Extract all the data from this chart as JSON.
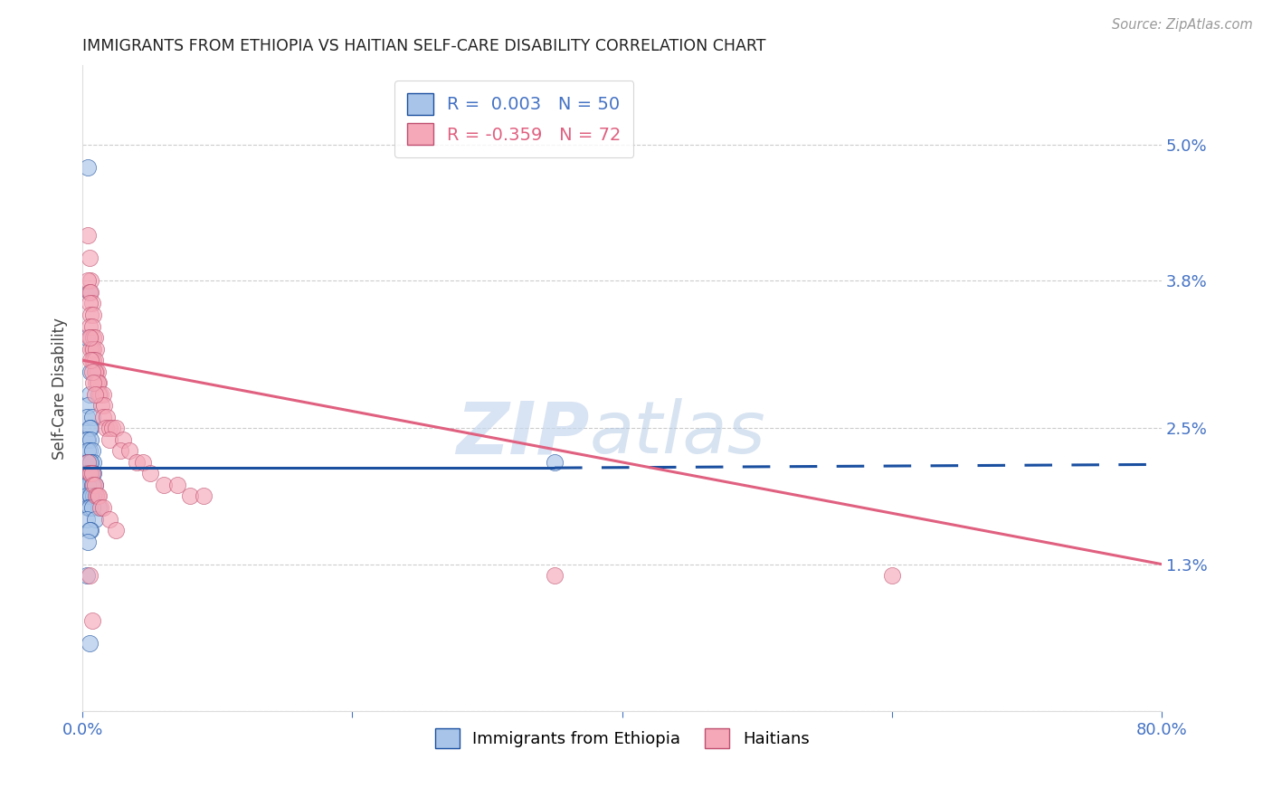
{
  "title": "IMMIGRANTS FROM ETHIOPIA VS HAITIAN SELF-CARE DISABILITY CORRELATION CHART",
  "source": "Source: ZipAtlas.com",
  "ylabel": "Self-Care Disability",
  "yticks": [
    0.0,
    0.013,
    0.025,
    0.038,
    0.05
  ],
  "ytick_labels": [
    "",
    "1.3%",
    "2.5%",
    "3.8%",
    "5.0%"
  ],
  "xlim": [
    0.0,
    0.8
  ],
  "ylim": [
    0.0,
    0.057
  ],
  "color_ethiopia": "#a8c4e8",
  "color_haitian": "#f4a8b8",
  "color_line_ethiopia": "#1a4fa0",
  "color_line_haitian": "#e06080",
  "watermark_zip": "ZIP",
  "watermark_atlas": "atlas",
  "eth_line_x0": 0.0,
  "eth_line_y0": 0.0215,
  "eth_line_x1": 0.35,
  "eth_line_y1": 0.0215,
  "eth_line_dash_x0": 0.35,
  "eth_line_dash_y0": 0.0215,
  "eth_line_dash_x1": 0.8,
  "eth_line_dash_y1": 0.0218,
  "hai_line_x0": 0.0,
  "hai_line_y0": 0.031,
  "hai_line_x1": 0.8,
  "hai_line_y1": 0.013,
  "ethiopia_x": [
    0.004,
    0.005,
    0.003,
    0.006,
    0.005,
    0.004,
    0.003,
    0.007,
    0.006,
    0.005,
    0.004,
    0.003,
    0.006,
    0.005,
    0.004,
    0.007,
    0.003,
    0.008,
    0.005,
    0.004,
    0.006,
    0.003,
    0.007,
    0.005,
    0.004,
    0.008,
    0.003,
    0.006,
    0.005,
    0.009,
    0.004,
    0.007,
    0.006,
    0.005,
    0.003,
    0.01,
    0.008,
    0.006,
    0.004,
    0.012,
    0.005,
    0.007,
    0.003,
    0.009,
    0.006,
    0.005,
    0.004,
    0.35,
    0.003,
    0.005
  ],
  "ethiopia_y": [
    0.048,
    0.037,
    0.033,
    0.03,
    0.028,
    0.027,
    0.026,
    0.026,
    0.025,
    0.025,
    0.024,
    0.024,
    0.024,
    0.023,
    0.023,
    0.023,
    0.022,
    0.022,
    0.022,
    0.022,
    0.022,
    0.021,
    0.021,
    0.021,
    0.021,
    0.021,
    0.02,
    0.02,
    0.02,
    0.02,
    0.02,
    0.02,
    0.019,
    0.019,
    0.019,
    0.019,
    0.019,
    0.019,
    0.018,
    0.018,
    0.018,
    0.018,
    0.017,
    0.017,
    0.016,
    0.016,
    0.015,
    0.022,
    0.012,
    0.006
  ],
  "haitian_x": [
    0.004,
    0.005,
    0.006,
    0.004,
    0.005,
    0.006,
    0.007,
    0.005,
    0.006,
    0.008,
    0.005,
    0.007,
    0.006,
    0.008,
    0.009,
    0.007,
    0.006,
    0.008,
    0.01,
    0.007,
    0.008,
    0.009,
    0.01,
    0.011,
    0.009,
    0.01,
    0.012,
    0.011,
    0.013,
    0.012,
    0.015,
    0.014,
    0.016,
    0.015,
    0.018,
    0.017,
    0.02,
    0.022,
    0.025,
    0.02,
    0.03,
    0.028,
    0.035,
    0.04,
    0.045,
    0.05,
    0.06,
    0.07,
    0.08,
    0.09,
    0.004,
    0.005,
    0.006,
    0.007,
    0.008,
    0.009,
    0.01,
    0.011,
    0.012,
    0.013,
    0.005,
    0.006,
    0.007,
    0.008,
    0.009,
    0.6,
    0.35,
    0.015,
    0.02,
    0.025,
    0.005,
    0.007
  ],
  "haitian_y": [
    0.042,
    0.04,
    0.038,
    0.038,
    0.037,
    0.037,
    0.036,
    0.036,
    0.035,
    0.035,
    0.034,
    0.034,
    0.033,
    0.033,
    0.033,
    0.032,
    0.032,
    0.032,
    0.032,
    0.031,
    0.031,
    0.031,
    0.03,
    0.03,
    0.03,
    0.029,
    0.029,
    0.029,
    0.028,
    0.028,
    0.028,
    0.027,
    0.027,
    0.026,
    0.026,
    0.025,
    0.025,
    0.025,
    0.025,
    0.024,
    0.024,
    0.023,
    0.023,
    0.022,
    0.022,
    0.021,
    0.02,
    0.02,
    0.019,
    0.019,
    0.022,
    0.021,
    0.021,
    0.021,
    0.02,
    0.02,
    0.019,
    0.019,
    0.019,
    0.018,
    0.033,
    0.031,
    0.03,
    0.029,
    0.028,
    0.012,
    0.012,
    0.018,
    0.017,
    0.016,
    0.012,
    0.008
  ]
}
